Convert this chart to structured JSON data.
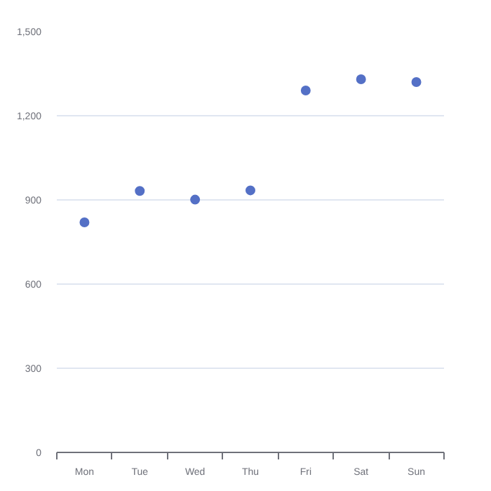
{
  "chart_data": {
    "type": "scatter",
    "categories": [
      "Mon",
      "Tue",
      "Wed",
      "Thu",
      "Fri",
      "Sat",
      "Sun"
    ],
    "values": [
      820,
      932,
      901,
      934,
      1290,
      1330,
      1320
    ],
    "color": "#5470c6",
    "ylim": [
      0,
      1500
    ],
    "yticks": [
      0,
      300,
      600,
      900,
      {
        "value": 1200,
        "label": "1,200"
      },
      {
        "value": 1500,
        "label": "1,500"
      }
    ],
    "grid": "y",
    "marker": "circle"
  }
}
